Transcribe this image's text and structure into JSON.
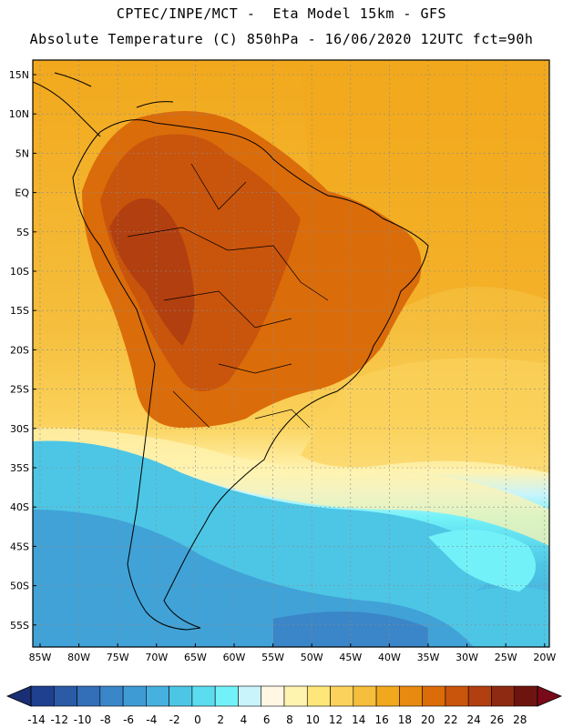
{
  "header": {
    "line1": "CPTEC/INPE/MCT -  Eta Model 15km - GFS",
    "line2": "Absolute Temperature (C) 850hPa - 16/06/2020 12UTC fct=90h"
  },
  "axes": {
    "lat_labels": [
      "15N",
      "10N",
      "5N",
      "EQ",
      "5S",
      "10S",
      "15S",
      "20S",
      "25S",
      "30S",
      "35S",
      "40S",
      "45S",
      "50S",
      "55S"
    ],
    "lon_labels": [
      "85W",
      "80W",
      "75W",
      "70W",
      "65W",
      "60W",
      "55W",
      "50W",
      "45W",
      "40W",
      "35W",
      "30W",
      "25W",
      "20W"
    ]
  },
  "colorbar": {
    "labels": [
      "-14",
      "-12",
      "-10",
      "-8",
      "-6",
      "-4",
      "-2",
      "0",
      "2",
      "4",
      "6",
      "8",
      "10",
      "12",
      "14",
      "16",
      "18",
      "20",
      "22",
      "24",
      "26",
      "28"
    ],
    "colors": [
      "#1f3f8f",
      "#2b5aa6",
      "#336eb8",
      "#3a86c8",
      "#3f9bd4",
      "#46b0de",
      "#4dc6e6",
      "#5cdcef",
      "#72f2f8",
      "#c9f4fb",
      "#fff7e3",
      "#fff3b0",
      "#ffe67a",
      "#fbd25b",
      "#f5be3c",
      "#f2a81c",
      "#e88a10",
      "#db6c0a",
      "#c9540b",
      "#b23f0f",
      "#8e2a12",
      "#6e1410"
    ],
    "lower_arrow_color": "#1a2e73",
    "upper_arrow_color": "#7a0a1a"
  },
  "map_colors": {
    "southern_cold": "#4dc6e6",
    "deep_cold": "#3a86c8",
    "ocean_warm": "#f2a81c",
    "ocean_mid": "#fbd25b",
    "ocean_cool": "#fff3b0",
    "continent_hot": "#c9540b",
    "continent_hotter": "#b23f0f",
    "coastline": "#000000"
  }
}
